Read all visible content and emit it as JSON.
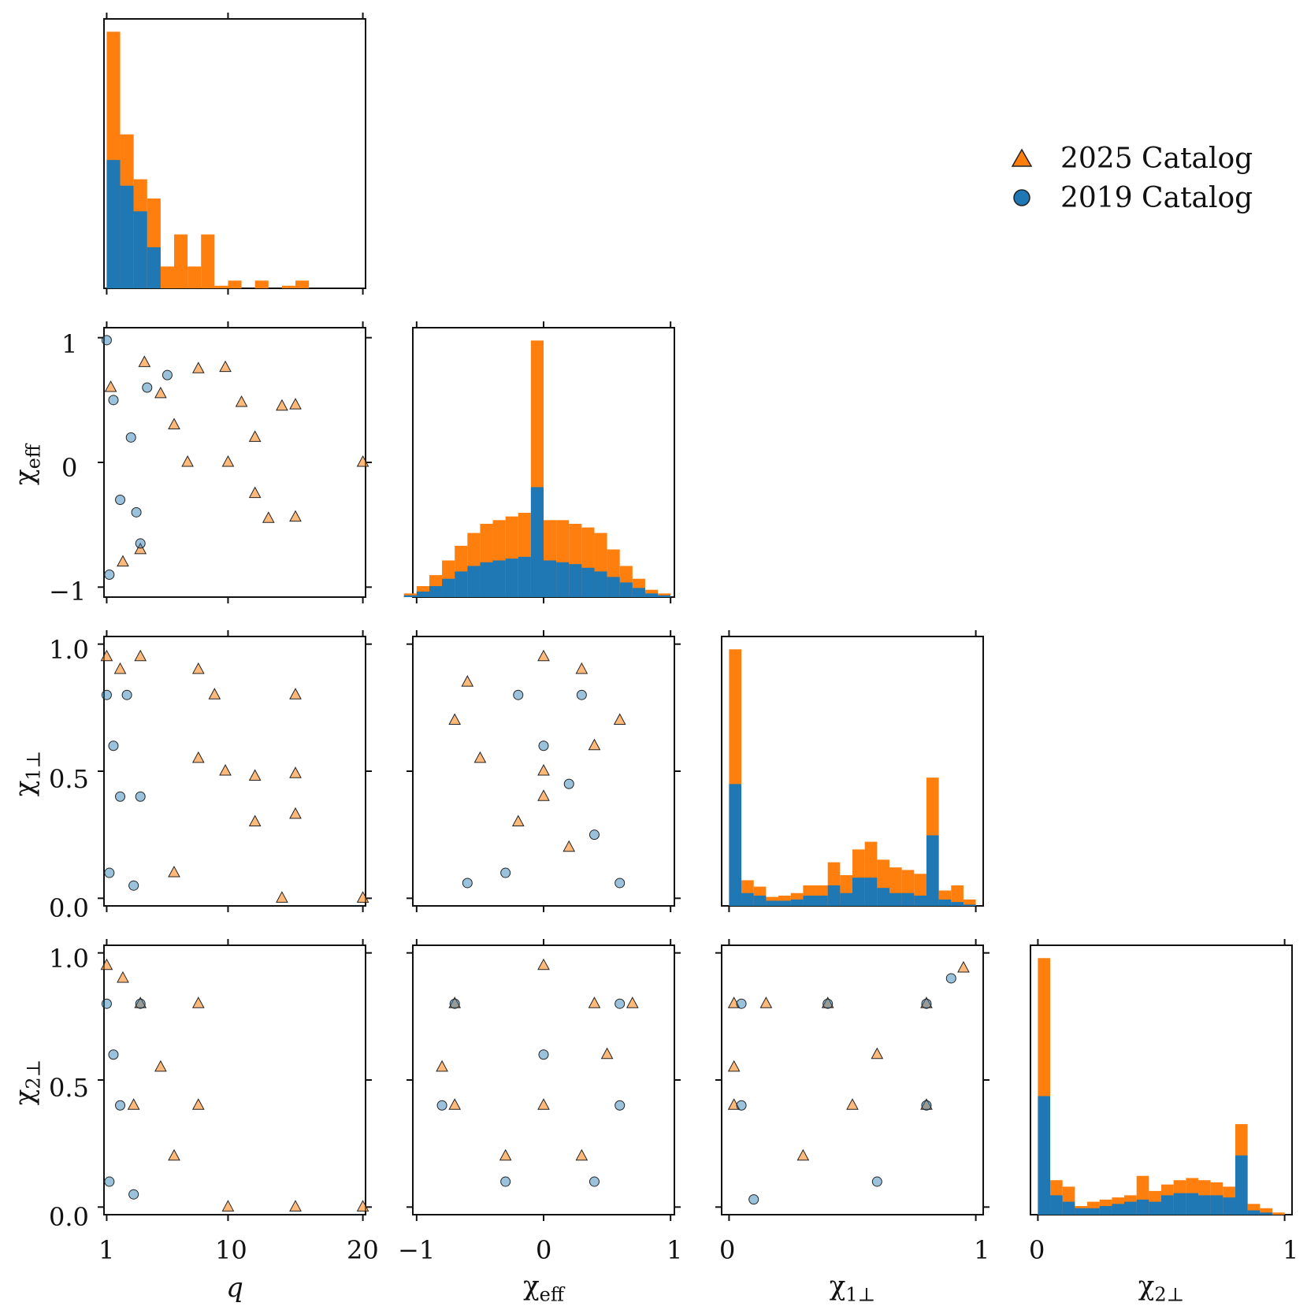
{
  "colors": {
    "orange": "#ff7f0e",
    "blue": "#1f77b4",
    "axis": "#111111"
  },
  "legend": {
    "items": [
      {
        "label": "2025 Catalog",
        "marker": "triangle",
        "color": "#ff7f0e"
      },
      {
        "label": "2019 Catalog",
        "marker": "circle",
        "color": "#1f77b4"
      }
    ]
  },
  "labels": {
    "x": {
      "q": "q",
      "chi_eff": "eff",
      "chi1": "1⊥",
      "chi2": "2⊥"
    },
    "chi_symbol": "χ"
  },
  "ticks": {
    "q": [
      "1",
      "10",
      "20"
    ],
    "chi_eff": [
      "−1",
      "0",
      "1"
    ],
    "chi_perp": [
      "0",
      "1"
    ],
    "chi_eff_y": [
      "1",
      "0",
      "−1"
    ],
    "chi_perp_y": [
      "1.0",
      "0.5",
      "0.0"
    ]
  },
  "chart_data": [
    {
      "type": "bar",
      "title": "q marginal (stacked histogram)",
      "xlabel": "q",
      "xlim": [
        0.8,
        20.2
      ],
      "bins": [
        1,
        2,
        3,
        4,
        5,
        6,
        7,
        8,
        9,
        10,
        11,
        12,
        13,
        14,
        15,
        16,
        17,
        18,
        19,
        20
      ],
      "series": [
        {
          "name": "2019 Catalog",
          "values": [
            100,
            80,
            60,
            32,
            0,
            0,
            0,
            0,
            0,
            0,
            0,
            0,
            0,
            0,
            0,
            0,
            0,
            0,
            0,
            0
          ]
        },
        {
          "name": "2025 Catalog",
          "values": [
            200,
            120,
            85,
            70,
            17,
            42,
            17,
            42,
            2,
            6,
            0,
            6,
            0,
            2,
            6,
            0,
            0,
            0,
            0,
            0
          ]
        }
      ]
    },
    {
      "type": "bar",
      "title": "chi_eff marginal (stacked histogram)",
      "xlabel": "χeff",
      "xlim": [
        -1.03,
        1.03
      ],
      "bin_width": 0.1,
      "series": [
        {
          "name": "2019 Catalog",
          "values": [
            1,
            3,
            6,
            10,
            14,
            17,
            19,
            20,
            21,
            22,
            60,
            20,
            19,
            18,
            16,
            14,
            11,
            8,
            5,
            2,
            1
          ]
        },
        {
          "name": "2025 Catalog",
          "values": [
            2,
            6,
            12,
            20,
            28,
            35,
            40,
            42,
            44,
            46,
            140,
            42,
            42,
            40,
            38,
            35,
            26,
            17,
            10,
            4,
            2
          ]
        }
      ]
    },
    {
      "type": "bar",
      "title": "chi1perp marginal (stacked histogram)",
      "xlabel": "χ1⊥",
      "xlim": [
        -0.03,
        1.03
      ],
      "bin_width": 0.05,
      "series": [
        {
          "name": "2019 Catalog",
          "values": [
            95,
            10,
            8,
            4,
            4,
            5,
            8,
            8,
            16,
            10,
            22,
            22,
            14,
            10,
            10,
            8,
            55,
            5,
            3,
            1
          ]
        },
        {
          "name": "2025 Catalog",
          "values": [
            200,
            20,
            15,
            7,
            8,
            10,
            16,
            16,
            34,
            24,
            44,
            50,
            36,
            30,
            28,
            25,
            100,
            12,
            16,
            5
          ]
        }
      ]
    },
    {
      "type": "bar",
      "title": "chi2perp marginal (stacked histogram)",
      "xlabel": "χ2⊥",
      "xlim": [
        -0.03,
        1.03
      ],
      "bin_width": 0.05,
      "series": [
        {
          "name": "2019 Catalog",
          "values": [
            110,
            18,
            12,
            6,
            6,
            8,
            10,
            12,
            14,
            12,
            18,
            20,
            20,
            18,
            18,
            16,
            55,
            4,
            2,
            0
          ]
        },
        {
          "name": "2025 Catalog",
          "values": [
            238,
            32,
            26,
            8,
            12,
            14,
            16,
            18,
            36,
            22,
            28,
            32,
            34,
            32,
            30,
            26,
            84,
            10,
            6,
            2
          ]
        }
      ]
    },
    {
      "type": "scatter",
      "title": "chi_eff vs q",
      "xlabel": "q",
      "ylabel": "χeff",
      "xlim": [
        0.8,
        20.2
      ],
      "ylim": [
        -1.08,
        1.08
      ],
      "series": [
        {
          "name": "2025 Catalog",
          "values": [
            [
              1.3,
              0.6
            ],
            [
              2.2,
              -0.8
            ],
            [
              3.8,
              0.8
            ],
            [
              5.0,
              0.55
            ],
            [
              7.8,
              0.75
            ],
            [
              9.8,
              0.76
            ],
            [
              11,
              0.48
            ],
            [
              12,
              -0.25
            ],
            [
              14,
              0.45
            ],
            [
              15,
              0.46
            ],
            [
              15,
              -0.44
            ],
            [
              20,
              0.0
            ],
            [
              7,
              0.0
            ],
            [
              10,
              0.0
            ],
            [
              3.5,
              -0.7
            ],
            [
              6,
              0.3
            ],
            [
              12,
              0.2
            ],
            [
              13,
              -0.45
            ]
          ]
        },
        {
          "name": "2019 Catalog",
          "values": [
            [
              1,
              0.98
            ],
            [
              1.5,
              0.5
            ],
            [
              2,
              -0.3
            ],
            [
              3.5,
              -0.65
            ],
            [
              4.0,
              0.6
            ],
            [
              1.2,
              -0.9
            ],
            [
              2.8,
              0.2
            ],
            [
              3.2,
              -0.4
            ],
            [
              5.5,
              0.7
            ]
          ]
        }
      ]
    },
    {
      "type": "scatter",
      "title": "chi1perp vs q",
      "xlabel": "q",
      "ylabel": "χ1⊥",
      "xlim": [
        0.8,
        20.2
      ],
      "ylim": [
        -0.03,
        1.03
      ],
      "series": [
        {
          "name": "2025 Catalog",
          "values": [
            [
              1,
              0.95
            ],
            [
              2,
              0.9
            ],
            [
              3.5,
              0.95
            ],
            [
              7.8,
              0.9
            ],
            [
              9.8,
              0.5
            ],
            [
              12,
              0.48
            ],
            [
              12,
              0.3
            ],
            [
              15,
              0.49
            ],
            [
              15,
              0.33
            ],
            [
              15,
              0.8
            ],
            [
              20,
              0.0
            ],
            [
              14,
              0.0
            ],
            [
              7.8,
              0.55
            ],
            [
              6,
              0.1
            ],
            [
              9,
              0.8
            ]
          ]
        },
        {
          "name": "2019 Catalog",
          "values": [
            [
              1,
              0.8
            ],
            [
              1.5,
              0.6
            ],
            [
              2,
              0.4
            ],
            [
              3.5,
              0.4
            ],
            [
              2.5,
              0.8
            ],
            [
              1.2,
              0.1
            ],
            [
              3,
              0.05
            ]
          ]
        }
      ]
    },
    {
      "type": "scatter",
      "title": "chi1perp vs chi_eff",
      "xlabel": "χeff",
      "ylabel": "χ1⊥",
      "xlim": [
        -1.03,
        1.03
      ],
      "ylim": [
        -0.03,
        1.03
      ],
      "series": [
        {
          "name": "2025 Catalog",
          "values": [
            [
              0,
              0.95
            ],
            [
              -0.6,
              0.85
            ],
            [
              0.3,
              0.9
            ],
            [
              -0.5,
              0.55
            ],
            [
              0.4,
              0.6
            ],
            [
              0,
              0.5
            ],
            [
              0,
              0.4
            ],
            [
              -0.7,
              0.7
            ],
            [
              0.6,
              0.7
            ],
            [
              0.2,
              0.2
            ],
            [
              -0.2,
              0.3
            ]
          ]
        },
        {
          "name": "2019 Catalog",
          "values": [
            [
              -0.2,
              0.8
            ],
            [
              0.3,
              0.8
            ],
            [
              0,
              0.6
            ],
            [
              0.4,
              0.25
            ],
            [
              -0.6,
              0.06
            ],
            [
              0.6,
              0.06
            ],
            [
              -0.3,
              0.1
            ],
            [
              0.2,
              0.45
            ]
          ]
        }
      ]
    },
    {
      "type": "scatter",
      "title": "chi2perp vs q",
      "xlabel": "q",
      "ylabel": "χ2⊥",
      "xlim": [
        0.8,
        20.2
      ],
      "ylim": [
        -0.03,
        1.03
      ],
      "series": [
        {
          "name": "2025 Catalog",
          "values": [
            [
              1,
              0.95
            ],
            [
              2.2,
              0.9
            ],
            [
              3.5,
              0.8
            ],
            [
              7.8,
              0.8
            ],
            [
              5,
              0.55
            ],
            [
              7.8,
              0.4
            ],
            [
              10,
              0.0
            ],
            [
              15,
              0.0
            ],
            [
              20,
              0.0
            ],
            [
              3,
              0.4
            ],
            [
              6,
              0.2
            ]
          ]
        },
        {
          "name": "2019 Catalog",
          "values": [
            [
              1,
              0.8
            ],
            [
              1.5,
              0.6
            ],
            [
              2,
              0.4
            ],
            [
              3.5,
              0.8
            ],
            [
              1.2,
              0.1
            ],
            [
              3,
              0.05
            ]
          ]
        }
      ]
    },
    {
      "type": "scatter",
      "title": "chi2perp vs chi_eff",
      "xlabel": "χeff",
      "ylabel": "χ2⊥",
      "xlim": [
        -1.03,
        1.03
      ],
      "ylim": [
        -0.03,
        1.03
      ],
      "series": [
        {
          "name": "2025 Catalog",
          "values": [
            [
              0,
              0.95
            ],
            [
              -0.8,
              0.55
            ],
            [
              -0.7,
              0.8
            ],
            [
              0.4,
              0.8
            ],
            [
              0,
              0.4
            ],
            [
              -0.7,
              0.4
            ],
            [
              0.5,
              0.6
            ],
            [
              -0.3,
              0.2
            ],
            [
              0.3,
              0.2
            ],
            [
              0.7,
              0.8
            ]
          ]
        },
        {
          "name": "2019 Catalog",
          "values": [
            [
              -0.7,
              0.8
            ],
            [
              0.6,
              0.8
            ],
            [
              0,
              0.6
            ],
            [
              -0.3,
              0.1
            ],
            [
              0.4,
              0.1
            ],
            [
              -0.8,
              0.4
            ],
            [
              0.6,
              0.4
            ]
          ]
        }
      ]
    },
    {
      "type": "scatter",
      "title": "chi2perp vs chi1perp",
      "xlabel": "χ1⊥",
      "ylabel": "χ2⊥",
      "xlim": [
        -0.03,
        1.03
      ],
      "ylim": [
        -0.03,
        1.03
      ],
      "series": [
        {
          "name": "2025 Catalog",
          "values": [
            [
              0.02,
              0.8
            ],
            [
              0.15,
              0.8
            ],
            [
              0.4,
              0.8
            ],
            [
              0.8,
              0.8
            ],
            [
              0.95,
              0.94
            ],
            [
              0.02,
              0.55
            ],
            [
              0.02,
              0.4
            ],
            [
              0.5,
              0.4
            ],
            [
              0.8,
              0.4
            ],
            [
              0.3,
              0.2
            ],
            [
              0.6,
              0.6
            ]
          ]
        },
        {
          "name": "2019 Catalog",
          "values": [
            [
              0.05,
              0.8
            ],
            [
              0.4,
              0.8
            ],
            [
              0.8,
              0.8
            ],
            [
              0.05,
              0.4
            ],
            [
              0.8,
              0.4
            ],
            [
              0.1,
              0.03
            ],
            [
              0.6,
              0.1
            ],
            [
              0.9,
              0.9
            ]
          ]
        }
      ]
    }
  ]
}
